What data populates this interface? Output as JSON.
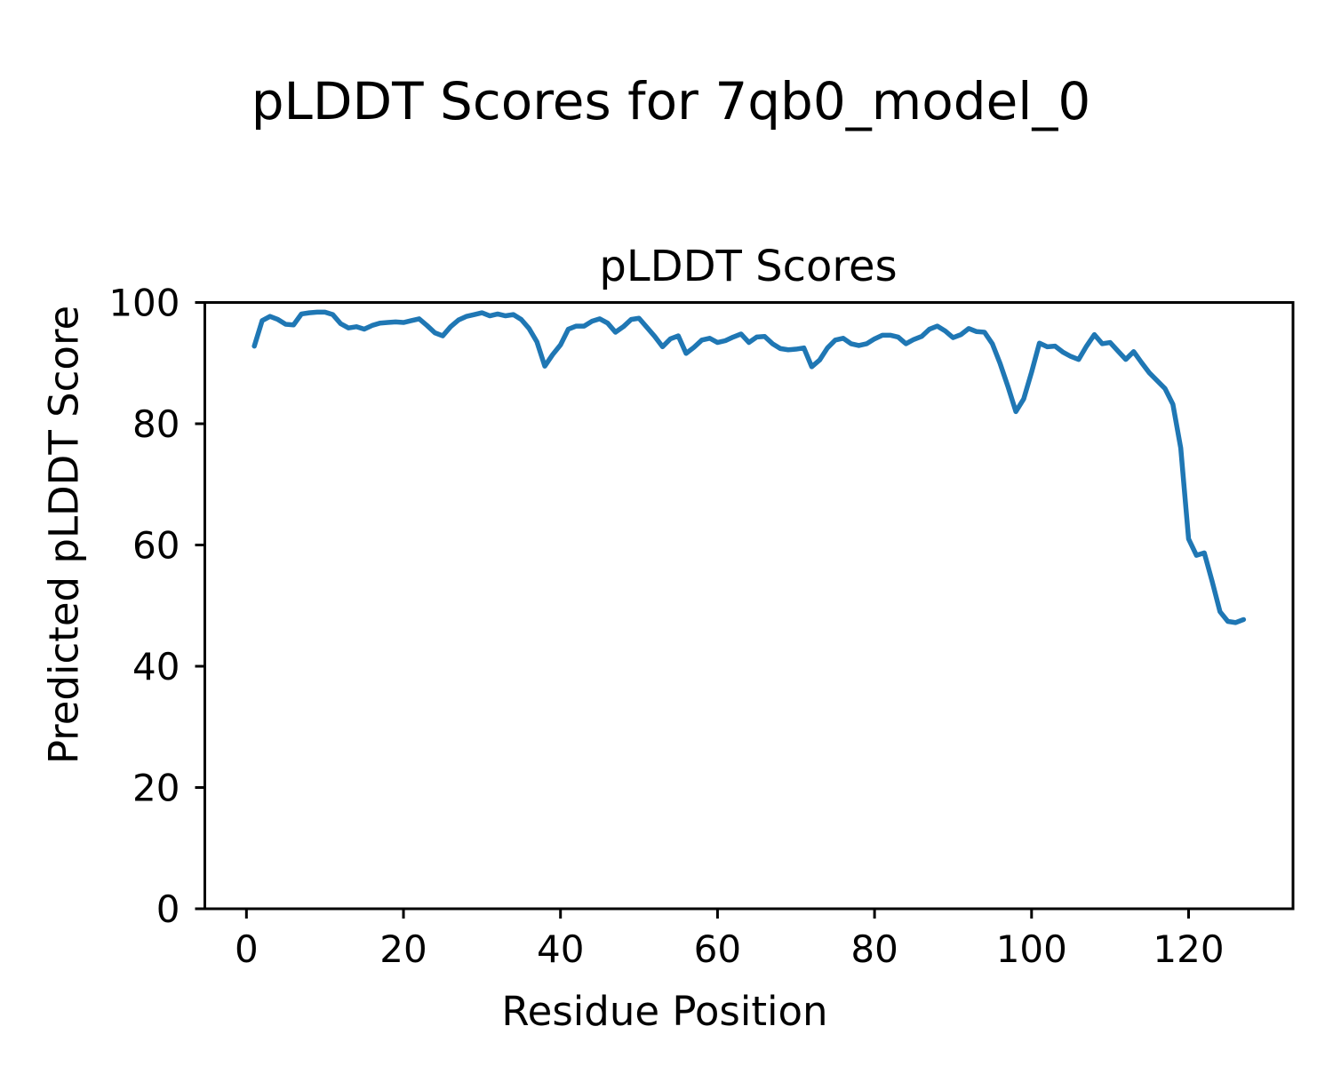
{
  "figure_title": "pLDDT Scores for 7qb0_model_0",
  "chart_data": {
    "type": "line",
    "title": "pLDDT Scores",
    "xlabel": "Residue Position",
    "ylabel": "Predicted pLDDT Score",
    "x_start": 1,
    "x_step": 1,
    "x_end": 127,
    "values": [
      92.8,
      97.0,
      97.7,
      97.2,
      96.4,
      96.3,
      98.1,
      98.3,
      98.4,
      98.4,
      98.0,
      96.5,
      95.8,
      96.0,
      95.6,
      96.2,
      96.6,
      96.7,
      96.8,
      96.7,
      97.0,
      97.3,
      96.2,
      95.0,
      94.5,
      96.0,
      97.1,
      97.7,
      98.0,
      98.3,
      97.8,
      98.1,
      97.8,
      98.0,
      97.2,
      95.7,
      93.5,
      89.5,
      91.4,
      93.0,
      95.6,
      96.1,
      96.1,
      96.9,
      97.3,
      96.6,
      95.1,
      96.0,
      97.2,
      97.4,
      95.9,
      94.4,
      92.7,
      94.0,
      94.5,
      91.6,
      92.6,
      93.8,
      94.1,
      93.4,
      93.7,
      94.3,
      94.8,
      93.4,
      94.3,
      94.4,
      93.2,
      92.4,
      92.2,
      92.3,
      92.5,
      89.4,
      90.5,
      92.5,
      93.8,
      94.1,
      93.2,
      92.9,
      93.2,
      94.0,
      94.6,
      94.6,
      94.3,
      93.2,
      93.9,
      94.4,
      95.6,
      96.1,
      95.3,
      94.2,
      94.7,
      95.7,
      95.2,
      95.1,
      93.2,
      89.9,
      86.1,
      82.0,
      84.1,
      88.5,
      93.3,
      92.7,
      92.8,
      91.8,
      91.1,
      90.6,
      92.8,
      94.7,
      93.2,
      93.4,
      92.0,
      90.6,
      91.9,
      90.1,
      88.4,
      87.1,
      85.8,
      83.2,
      76.0,
      61.0,
      58.3,
      58.7,
      54.0,
      49.0,
      47.4,
      47.2,
      47.7
    ],
    "xlim": [
      -5.3,
      133.3
    ],
    "ylim": [
      0,
      100
    ],
    "xticks": [
      0,
      20,
      40,
      60,
      80,
      100,
      120
    ],
    "yticks": [
      0,
      20,
      40,
      60,
      80,
      100
    ],
    "line_color": "#1f77b4",
    "axis_color": "#000000",
    "grid": false,
    "legend_position": "none"
  }
}
